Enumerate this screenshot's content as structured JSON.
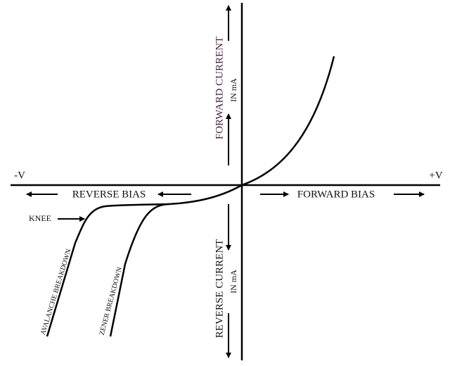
{
  "axes": {
    "negative_voltage": "-V",
    "positive_voltage": "+V"
  },
  "labels": {
    "forward_current": "FORWARD CURRENT",
    "forward_current_unit": "IN mA",
    "reverse_current": "REVERSE CURRENT",
    "reverse_current_unit": "IN mA",
    "reverse_bias": "REVERSE BIAS",
    "forward_bias": "FORWARD BIAS",
    "knee": "KNEE",
    "avalanche_breakdown": "AVALANCHE BREAKDOWN",
    "zener_breakdown": "ZENER BREAKDOWN"
  }
}
